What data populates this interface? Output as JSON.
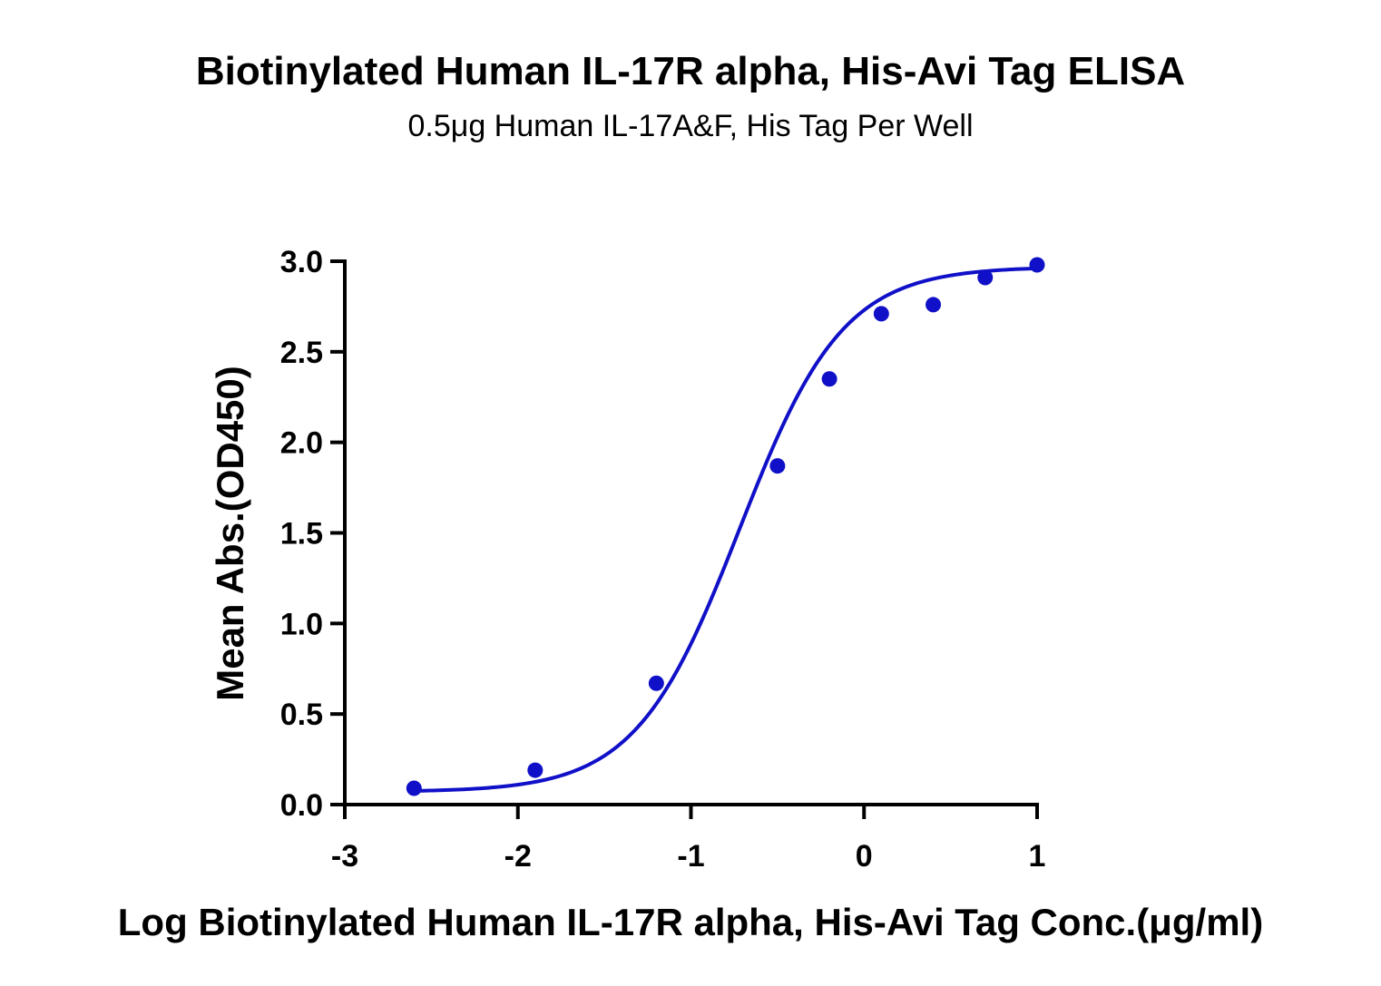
{
  "chart_data": {
    "type": "scatter",
    "title": "Biotinylated Human IL-17R alpha, His-Avi Tag ELISA",
    "subtitle": "0.5μg Human IL-17A&F, His Tag Per Well",
    "xlabel": "Log Biotinylated Human IL-17R alpha, His-Avi Tag Conc.(μg/ml)",
    "ylabel": "Mean Abs.(OD450)",
    "xlim": [
      -3,
      1
    ],
    "ylim": [
      0,
      3.0
    ],
    "x_ticks": [
      -3,
      -2,
      -1,
      0,
      1
    ],
    "x_tick_labels": [
      "-3",
      "-2",
      "-1",
      "0",
      "1"
    ],
    "y_ticks": [
      0,
      0.5,
      1.0,
      1.5,
      2.0,
      2.5,
      3.0
    ],
    "y_tick_labels": [
      "0.0",
      "0.5",
      "1.0",
      "1.5",
      "2.0",
      "2.5",
      "3.0"
    ],
    "grid": false,
    "color": "#1010c8",
    "series": [
      {
        "points": [
          {
            "x": -2.6,
            "y": 0.09
          },
          {
            "x": -1.9,
            "y": 0.19
          },
          {
            "x": -1.2,
            "y": 0.67
          },
          {
            "x": -0.5,
            "y": 1.87
          },
          {
            "x": -0.2,
            "y": 2.35
          },
          {
            "x": 0.1,
            "y": 2.71
          },
          {
            "x": 0.4,
            "y": 2.76
          },
          {
            "x": 0.7,
            "y": 2.91
          },
          {
            "x": 1.0,
            "y": 2.98
          }
        ],
        "fit": {
          "model": "4PL",
          "bottom": 0.07,
          "top": 2.97,
          "log_ec50": -0.72,
          "hill_slope": 1.45,
          "x_range": [
            -2.6,
            1.0
          ]
        }
      }
    ]
  }
}
